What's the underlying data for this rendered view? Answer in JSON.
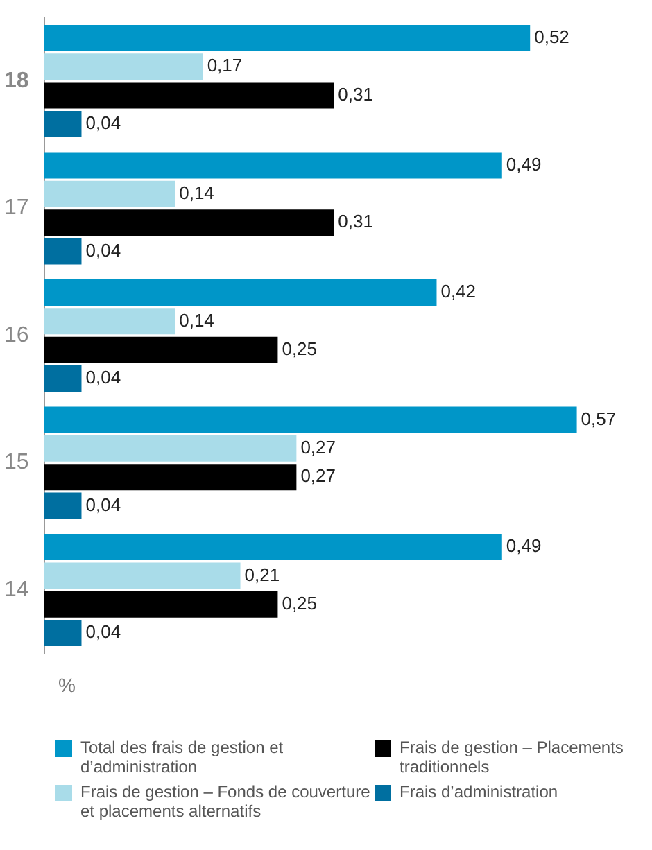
{
  "chart_data": {
    "type": "bar",
    "orientation": "horizontal",
    "categories": [
      "18",
      "17",
      "16",
      "15",
      "14"
    ],
    "xlabel": "%",
    "tick_labels": "y",
    "legend": "bottom",
    "series": [
      {
        "name": "Total des frais de gestion et d’administration",
        "color": "#0096c8",
        "values": [
          0.52,
          0.49,
          0.42,
          0.57,
          0.49
        ],
        "value_labels": [
          "0,52",
          "0,49",
          "0,42",
          "0,57",
          "0,49"
        ]
      },
      {
        "name": "Frais de gestion – Fonds de couverture et placements alternatifs",
        "color": "#a9dce9",
        "values": [
          0.17,
          0.14,
          0.14,
          0.27,
          0.21
        ],
        "value_labels": [
          "0,17",
          "0,14",
          "0,14",
          "0,27",
          "0,21"
        ]
      },
      {
        "name": "Frais de gestion – Placements traditionnels",
        "color": "#000000",
        "values": [
          0.31,
          0.31,
          0.25,
          0.27,
          0.25
        ],
        "value_labels": [
          "0,31",
          "0,31",
          "0,25",
          "0,27",
          "0,25"
        ]
      },
      {
        "name": "Frais d’administration",
        "color": "#006fa0",
        "values": [
          0.04,
          0.04,
          0.04,
          0.04,
          0.04
        ],
        "value_labels": [
          "0,04",
          "0,04",
          "0,04",
          "0,04",
          "0,04"
        ]
      }
    ]
  }
}
